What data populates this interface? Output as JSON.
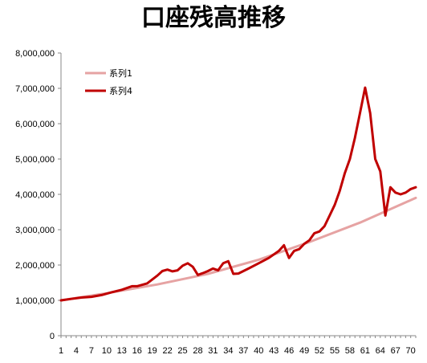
{
  "chart_data": {
    "type": "line",
    "title": "口座残高推移",
    "ylim": [
      0,
      8000000
    ],
    "y_ticks": [
      "0",
      "1,000,000",
      "2,000,000",
      "3,000,000",
      "4,000,000",
      "5,000,000",
      "6,000,000",
      "7,000,000",
      "8,000,000"
    ],
    "x_ticks": [
      "1",
      "4",
      "7",
      "10",
      "13",
      "16",
      "19",
      "22",
      "25",
      "28",
      "31",
      "34",
      "37",
      "40",
      "43",
      "46",
      "49",
      "52",
      "55",
      "58",
      "61",
      "64",
      "67",
      "70"
    ],
    "grid": false,
    "legend_position": "top-left",
    "series": [
      {
        "name": "系列1",
        "color": "#e6a3a3",
        "points": [
          [
            1,
            1000000
          ],
          [
            10,
            1200000
          ],
          [
            20,
            1450000
          ],
          [
            30,
            1750000
          ],
          [
            40,
            2150000
          ],
          [
            50,
            2650000
          ],
          [
            60,
            3200000
          ],
          [
            71,
            3900000
          ]
        ]
      },
      {
        "name": "系列4",
        "color": "#c00000",
        "points": [
          [
            1,
            1000000
          ],
          [
            3,
            1040000
          ],
          [
            5,
            1080000
          ],
          [
            7,
            1100000
          ],
          [
            9,
            1150000
          ],
          [
            11,
            1230000
          ],
          [
            13,
            1300000
          ],
          [
            15,
            1400000
          ],
          [
            16,
            1400000
          ],
          [
            18,
            1480000
          ],
          [
            20,
            1700000
          ],
          [
            21,
            1830000
          ],
          [
            22,
            1870000
          ],
          [
            23,
            1820000
          ],
          [
            24,
            1850000
          ],
          [
            25,
            1980000
          ],
          [
            26,
            2050000
          ],
          [
            27,
            1950000
          ],
          [
            28,
            1720000
          ],
          [
            29,
            1770000
          ],
          [
            30,
            1830000
          ],
          [
            31,
            1900000
          ],
          [
            32,
            1850000
          ],
          [
            33,
            2050000
          ],
          [
            34,
            2110000
          ],
          [
            35,
            1750000
          ],
          [
            36,
            1760000
          ],
          [
            38,
            1900000
          ],
          [
            40,
            2050000
          ],
          [
            42,
            2200000
          ],
          [
            44,
            2400000
          ],
          [
            45,
            2560000
          ],
          [
            46,
            2200000
          ],
          [
            47,
            2400000
          ],
          [
            48,
            2450000
          ],
          [
            49,
            2600000
          ],
          [
            50,
            2700000
          ],
          [
            51,
            2900000
          ],
          [
            52,
            2950000
          ],
          [
            53,
            3100000
          ],
          [
            54,
            3400000
          ],
          [
            55,
            3700000
          ],
          [
            56,
            4100000
          ],
          [
            57,
            4600000
          ],
          [
            58,
            5000000
          ],
          [
            59,
            5600000
          ],
          [
            60,
            6300000
          ],
          [
            61,
            7020000
          ],
          [
            62,
            6300000
          ],
          [
            63,
            5000000
          ],
          [
            64,
            4650000
          ],
          [
            65,
            3400000
          ],
          [
            66,
            4200000
          ],
          [
            67,
            4050000
          ],
          [
            68,
            4000000
          ],
          [
            69,
            4050000
          ],
          [
            70,
            4150000
          ],
          [
            71,
            4200000
          ]
        ]
      }
    ]
  }
}
